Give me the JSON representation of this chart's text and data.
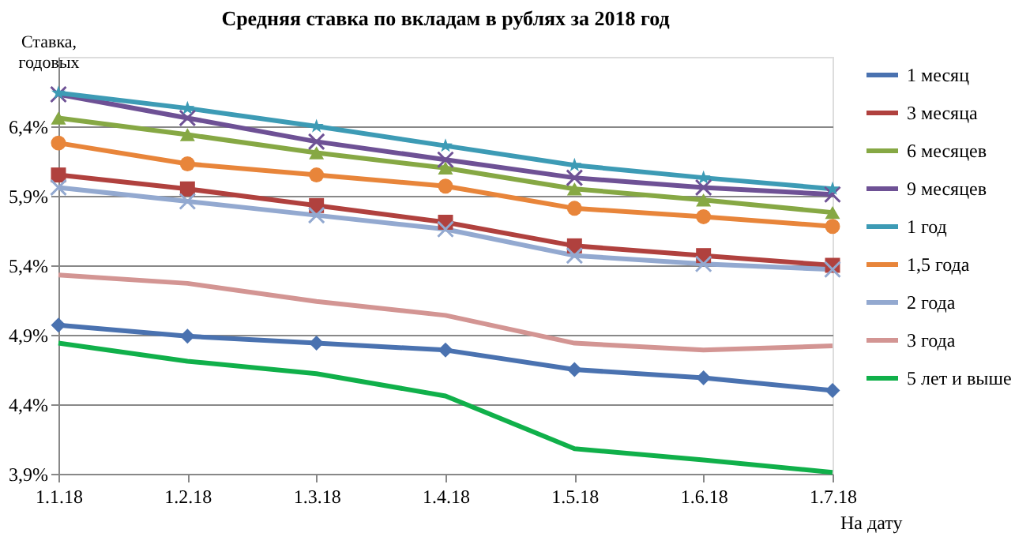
{
  "chart_data": {
    "type": "line",
    "title": "Средняя ставка по вкладам в рублях за 2018 год",
    "ylabel": "Ставка, годовых",
    "xlabel": "На дату",
    "categories": [
      "1.1.18",
      "1.2.18",
      "1.3.18",
      "1.4.18",
      "1.5.18",
      "1.6.18",
      "1.7.18"
    ],
    "series": [
      {
        "name": "1 месяц",
        "color": "#4a72b0",
        "marker": "diamond",
        "values": [
          4.97,
          4.89,
          4.84,
          4.79,
          4.65,
          4.59,
          4.5
        ]
      },
      {
        "name": "3 месяца",
        "color": "#b0413e",
        "marker": "square",
        "values": [
          6.05,
          5.95,
          5.83,
          5.71,
          5.54,
          5.47,
          5.4
        ]
      },
      {
        "name": "6 месяцев",
        "color": "#86a844",
        "marker": "triangle",
        "values": [
          6.46,
          6.34,
          6.21,
          6.1,
          5.95,
          5.87,
          5.78
        ]
      },
      {
        "name": "9 месяцев",
        "color": "#6e5195",
        "marker": "cross",
        "values": [
          6.63,
          6.46,
          6.29,
          6.16,
          6.03,
          5.96,
          5.91
        ]
      },
      {
        "name": "1 год",
        "color": "#3d9bb5",
        "marker": "star",
        "values": [
          6.64,
          6.53,
          6.4,
          6.26,
          6.12,
          6.03,
          5.95
        ]
      },
      {
        "name": "1,5 года",
        "color": "#e8853a",
        "marker": "circle",
        "values": [
          6.28,
          6.13,
          6.05,
          5.97,
          5.81,
          5.75,
          5.68
        ]
      },
      {
        "name": "2 года",
        "color": "#93a9d0",
        "marker": "cross",
        "values": [
          5.96,
          5.86,
          5.76,
          5.66,
          5.47,
          5.41,
          5.37
        ]
      },
      {
        "name": "3 года",
        "color": "#d39593",
        "marker": "none",
        "values": [
          5.33,
          5.27,
          5.14,
          5.04,
          4.84,
          4.79,
          4.82
        ]
      },
      {
        "name": "5 лет и выше",
        "color": "#10b04a",
        "marker": "none",
        "values": [
          4.84,
          4.71,
          4.62,
          4.46,
          4.08,
          4.0,
          3.91
        ]
      }
    ],
    "ylim": [
      3.9,
      6.9
    ],
    "yticks": [
      {
        "value": 3.9,
        "label": "3,9%"
      },
      {
        "value": 4.4,
        "label": "4,4%"
      },
      {
        "value": 4.9,
        "label": "4,9%"
      },
      {
        "value": 5.4,
        "label": "5,4%"
      },
      {
        "value": 5.9,
        "label": "5,9%"
      },
      {
        "value": 6.4,
        "label": "6,4%"
      }
    ],
    "grid": "y",
    "legend": "right"
  }
}
